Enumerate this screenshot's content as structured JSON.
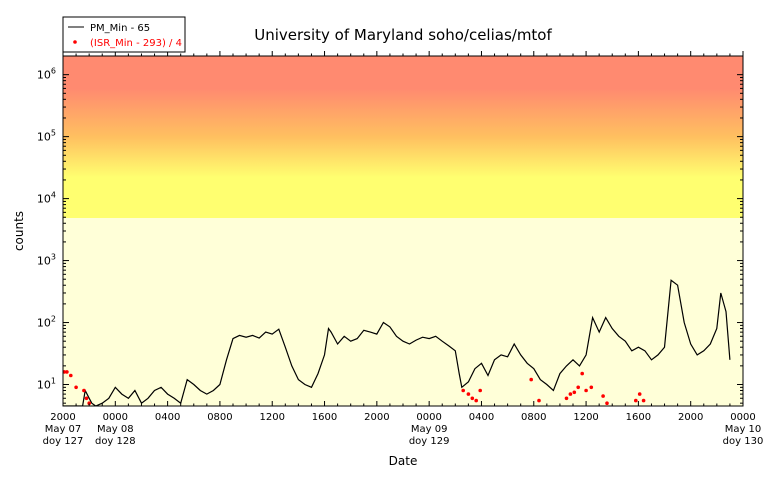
{
  "chart_data": {
    "type": "line",
    "title": "University of Maryland  soho/celias/mtof",
    "xlabel": "Date",
    "ylabel": "counts",
    "yscale": "log",
    "ylim": [
      4.5,
      2000000
    ],
    "xlim": [
      "2012-05-07 20:00",
      "2012-05-10 00:00"
    ],
    "grid": false,
    "legend_position": "top-left",
    "background_bands": [
      {
        "from": 4.5,
        "to": 5000,
        "color": "#ffffd8"
      },
      {
        "from": 5000,
        "to": 2000000,
        "gradient": [
          "#ffff70",
          "#ffd060",
          "#ff8a70",
          "#ff8a70"
        ]
      }
    ],
    "y_ticks": [
      {
        "value": 10,
        "base": "10",
        "exp": "1"
      },
      {
        "value": 100,
        "base": "10",
        "exp": "2"
      },
      {
        "value": 1000,
        "base": "10",
        "exp": "3"
      },
      {
        "value": 10000,
        "base": "10",
        "exp": "4"
      },
      {
        "value": 100000,
        "base": "10",
        "exp": "5"
      },
      {
        "value": 1000000,
        "base": "10",
        "exp": "6"
      }
    ],
    "x_ticks": [
      {
        "hour": 0,
        "lines": [
          "2000",
          "May 07",
          "doy 127"
        ]
      },
      {
        "hour": 4,
        "lines": [
          "0000",
          "May 08",
          "doy 128"
        ]
      },
      {
        "hour": 8,
        "lines": [
          "0400"
        ]
      },
      {
        "hour": 12,
        "lines": [
          "0800"
        ]
      },
      {
        "hour": 16,
        "lines": [
          "1200"
        ]
      },
      {
        "hour": 20,
        "lines": [
          "1600"
        ]
      },
      {
        "hour": 24,
        "lines": [
          "2000"
        ]
      },
      {
        "hour": 28,
        "lines": [
          "0000",
          "May 09",
          "doy 129"
        ]
      },
      {
        "hour": 32,
        "lines": [
          "0400"
        ]
      },
      {
        "hour": 36,
        "lines": [
          "0800"
        ]
      },
      {
        "hour": 40,
        "lines": [
          "1200"
        ]
      },
      {
        "hour": 44,
        "lines": [
          "1600"
        ]
      },
      {
        "hour": 48,
        "lines": [
          "2000"
        ]
      },
      {
        "hour": 52,
        "lines": [
          "0000",
          "May 10",
          "doy 130"
        ]
      }
    ],
    "series": [
      {
        "name": "PM_Min - 65",
        "color": "#000000",
        "style": "line",
        "points": [
          [
            0.0,
            4.5
          ],
          [
            1.5,
            4.5
          ],
          [
            1.7,
            8
          ],
          [
            2.0,
            6
          ],
          [
            2.2,
            5
          ],
          [
            2.5,
            4.5
          ],
          [
            3.0,
            5
          ],
          [
            3.5,
            6
          ],
          [
            4.0,
            9
          ],
          [
            4.5,
            7
          ],
          [
            5.0,
            6
          ],
          [
            5.5,
            8
          ],
          [
            6.0,
            5
          ],
          [
            6.5,
            6
          ],
          [
            7.0,
            8
          ],
          [
            7.5,
            9
          ],
          [
            8.0,
            7
          ],
          [
            8.5,
            6
          ],
          [
            9.0,
            5
          ],
          [
            9.5,
            12
          ],
          [
            10.0,
            10
          ],
          [
            10.5,
            8
          ],
          [
            11.0,
            7
          ],
          [
            11.5,
            8
          ],
          [
            12.0,
            10
          ],
          [
            12.5,
            25
          ],
          [
            13.0,
            55
          ],
          [
            13.5,
            62
          ],
          [
            14.0,
            58
          ],
          [
            14.5,
            62
          ],
          [
            15.0,
            56
          ],
          [
            15.5,
            70
          ],
          [
            16.0,
            65
          ],
          [
            16.5,
            78
          ],
          [
            17.0,
            40
          ],
          [
            17.5,
            20
          ],
          [
            18.0,
            12
          ],
          [
            18.5,
            10
          ],
          [
            19.0,
            9
          ],
          [
            19.5,
            15
          ],
          [
            20.0,
            30
          ],
          [
            20.3,
            80
          ],
          [
            20.5,
            70
          ],
          [
            21.0,
            45
          ],
          [
            21.5,
            60
          ],
          [
            22.0,
            50
          ],
          [
            22.5,
            55
          ],
          [
            23.0,
            75
          ],
          [
            23.5,
            70
          ],
          [
            24.0,
            65
          ],
          [
            24.5,
            100
          ],
          [
            25.0,
            85
          ],
          [
            25.5,
            60
          ],
          [
            26.0,
            50
          ],
          [
            26.5,
            45
          ],
          [
            27.0,
            52
          ],
          [
            27.5,
            58
          ],
          [
            28.0,
            55
          ],
          [
            28.5,
            60
          ],
          [
            29.0,
            50
          ],
          [
            29.5,
            42
          ],
          [
            30.0,
            35
          ],
          [
            30.3,
            15
          ],
          [
            30.5,
            9
          ],
          [
            31.0,
            11
          ],
          [
            31.5,
            18
          ],
          [
            32.0,
            22
          ],
          [
            32.5,
            14
          ],
          [
            33.0,
            25
          ],
          [
            33.5,
            30
          ],
          [
            34.0,
            28
          ],
          [
            34.5,
            45
          ],
          [
            35.0,
            30
          ],
          [
            35.5,
            22
          ],
          [
            36.0,
            18
          ],
          [
            36.5,
            12
          ],
          [
            37.0,
            10
          ],
          [
            37.5,
            8
          ],
          [
            38.0,
            15
          ],
          [
            38.5,
            20
          ],
          [
            39.0,
            25
          ],
          [
            39.5,
            20
          ],
          [
            40.0,
            30
          ],
          [
            40.5,
            120
          ],
          [
            41.0,
            70
          ],
          [
            41.5,
            120
          ],
          [
            42.0,
            80
          ],
          [
            42.5,
            60
          ],
          [
            43.0,
            50
          ],
          [
            43.5,
            35
          ],
          [
            44.0,
            40
          ],
          [
            44.5,
            35
          ],
          [
            45.0,
            25
          ],
          [
            45.5,
            30
          ],
          [
            46.0,
            40
          ],
          [
            46.5,
            480
          ],
          [
            47.0,
            400
          ],
          [
            47.5,
            100
          ],
          [
            48.0,
            45
          ],
          [
            48.5,
            30
          ],
          [
            49.0,
            35
          ],
          [
            49.5,
            45
          ],
          [
            50.0,
            80
          ],
          [
            50.3,
            300
          ],
          [
            50.7,
            150
          ],
          [
            51.0,
            25
          ]
        ]
      },
      {
        "name": "(ISR_Min - 293) / 4",
        "color": "#ff0000",
        "style": "points",
        "points": [
          [
            0.1,
            16
          ],
          [
            0.3,
            16
          ],
          [
            0.6,
            14
          ],
          [
            1.0,
            9
          ],
          [
            1.6,
            8
          ],
          [
            1.8,
            6
          ],
          [
            2.0,
            5
          ],
          [
            30.6,
            8
          ],
          [
            31.0,
            7
          ],
          [
            31.3,
            6
          ],
          [
            31.6,
            5.5
          ],
          [
            31.9,
            8
          ],
          [
            35.8,
            12
          ],
          [
            36.4,
            5.5
          ],
          [
            38.5,
            6
          ],
          [
            38.8,
            7
          ],
          [
            39.1,
            7.5
          ],
          [
            39.4,
            9
          ],
          [
            39.7,
            15
          ],
          [
            40.0,
            8
          ],
          [
            40.4,
            9
          ],
          [
            41.3,
            6.5
          ],
          [
            41.6,
            5
          ],
          [
            43.8,
            5.5
          ],
          [
            44.1,
            7
          ],
          [
            44.4,
            5.5
          ]
        ]
      }
    ]
  }
}
